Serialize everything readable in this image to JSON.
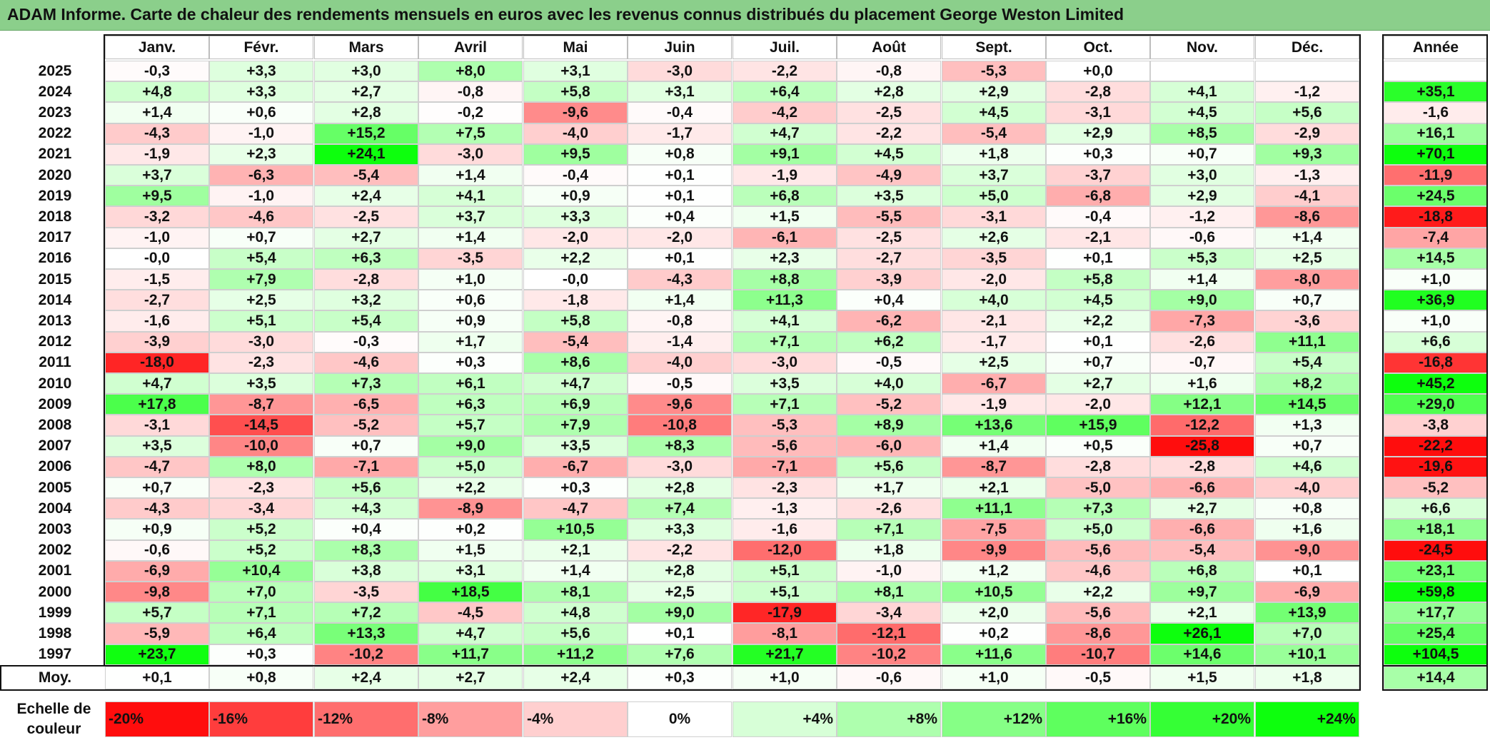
{
  "title": "ADAM Informe. Carte de chaleur des rendements mensuels en euros avec les revenus connus distribués du placement George Weston Limited",
  "months": [
    "Janv.",
    "Févr.",
    "Mars",
    "Avril",
    "Mai",
    "Juin",
    "Juil.",
    "Août",
    "Sept.",
    "Oct.",
    "Nov.",
    "Déc."
  ],
  "year_header": "Année",
  "avg_label": "Moy.",
  "scale_label": "Echelle de couleur",
  "scale_labels": [
    "-20%",
    "-16%",
    "-12%",
    "-8%",
    "-4%",
    "0%",
    "+4%",
    "+8%",
    "+12%",
    "+16%",
    "+20%",
    "+24%"
  ],
  "scale_values": [
    -20,
    -16,
    -12,
    -8,
    -4,
    0,
    4,
    8,
    12,
    16,
    20,
    24
  ],
  "colors": {
    "negative": "#ff0000",
    "positive": "#00ff00",
    "neutral": "#ffffff",
    "title_bg": "#8bcf8b"
  },
  "chart_data": {
    "type": "heatmap",
    "title": "ADAM Informe. Carte de chaleur des rendements mensuels en euros avec les revenus connus distribués du placement George Weston Limited",
    "categories": [
      "Janv.",
      "Févr.",
      "Mars",
      "Avril",
      "Mai",
      "Juin",
      "Juil.",
      "Août",
      "Sept.",
      "Oct.",
      "Nov.",
      "Déc."
    ],
    "rows": [
      {
        "year": "2025",
        "values": [
          "-0,3",
          "+3,3",
          "+3,0",
          "+8,0",
          "+3,1",
          "-3,0",
          "-2,2",
          "-0,8",
          "-5,3",
          "+0,0",
          "",
          ""
        ],
        "annual": ""
      },
      {
        "year": "2024",
        "values": [
          "+4,8",
          "+3,3",
          "+2,7",
          "-0,8",
          "+5,8",
          "+3,1",
          "+6,4",
          "+2,8",
          "+2,9",
          "-2,8",
          "+4,1",
          "-1,2"
        ],
        "annual": "+35,1"
      },
      {
        "year": "2023",
        "values": [
          "+1,4",
          "+0,6",
          "+2,8",
          "-0,2",
          "-9,6",
          "-0,4",
          "-4,2",
          "-2,5",
          "+4,5",
          "-3,1",
          "+4,5",
          "+5,6"
        ],
        "annual": "-1,6"
      },
      {
        "year": "2022",
        "values": [
          "-4,3",
          "-1,0",
          "+15,2",
          "+7,5",
          "-4,0",
          "-1,7",
          "+4,7",
          "-2,2",
          "-5,4",
          "+2,9",
          "+8,5",
          "-2,9"
        ],
        "annual": "+16,1"
      },
      {
        "year": "2021",
        "values": [
          "-1,9",
          "+2,3",
          "+24,1",
          "-3,0",
          "+9,5",
          "+0,8",
          "+9,1",
          "+4,5",
          "+1,8",
          "+0,3",
          "+0,7",
          "+9,3"
        ],
        "annual": "+70,1"
      },
      {
        "year": "2020",
        "values": [
          "+3,7",
          "-6,3",
          "-5,4",
          "+1,4",
          "-0,4",
          "+0,1",
          "-1,9",
          "-4,9",
          "+3,7",
          "-3,7",
          "+3,0",
          "-1,3"
        ],
        "annual": "-11,9"
      },
      {
        "year": "2019",
        "values": [
          "+9,5",
          "-1,0",
          "+2,4",
          "+4,1",
          "+0,9",
          "+0,1",
          "+6,8",
          "+3,5",
          "+5,0",
          "-6,8",
          "+2,9",
          "-4,1"
        ],
        "annual": "+24,5"
      },
      {
        "year": "2018",
        "values": [
          "-3,2",
          "-4,6",
          "-2,5",
          "+3,7",
          "+3,3",
          "+0,4",
          "+1,5",
          "-5,5",
          "-3,1",
          "-0,4",
          "-1,2",
          "-8,6"
        ],
        "annual": "-18,8"
      },
      {
        "year": "2017",
        "values": [
          "-1,0",
          "+0,7",
          "+2,7",
          "+1,4",
          "-2,0",
          "-2,0",
          "-6,1",
          "-2,5",
          "+2,6",
          "-2,1",
          "-0,6",
          "+1,4"
        ],
        "annual": "-7,4"
      },
      {
        "year": "2016",
        "values": [
          "-0,0",
          "+5,4",
          "+6,3",
          "-3,5",
          "+2,2",
          "+0,1",
          "+2,3",
          "-2,7",
          "-3,5",
          "+0,1",
          "+5,3",
          "+2,5"
        ],
        "annual": "+14,5"
      },
      {
        "year": "2015",
        "values": [
          "-1,5",
          "+7,9",
          "-2,8",
          "+1,0",
          "-0,0",
          "-4,3",
          "+8,8",
          "-3,9",
          "-2,0",
          "+5,8",
          "+1,4",
          "-8,0"
        ],
        "annual": "+1,0"
      },
      {
        "year": "2014",
        "values": [
          "-2,7",
          "+2,5",
          "+3,2",
          "+0,6",
          "-1,8",
          "+1,4",
          "+11,3",
          "+0,4",
          "+4,0",
          "+4,5",
          "+9,0",
          "+0,7"
        ],
        "annual": "+36,9"
      },
      {
        "year": "2013",
        "values": [
          "-1,6",
          "+5,1",
          "+5,4",
          "+0,9",
          "+5,8",
          "-0,8",
          "+4,1",
          "-6,2",
          "-2,1",
          "+2,2",
          "-7,3",
          "-3,6"
        ],
        "annual": "+1,0"
      },
      {
        "year": "2012",
        "values": [
          "-3,9",
          "-3,0",
          "-0,3",
          "+1,7",
          "-5,4",
          "-1,4",
          "+7,1",
          "+6,2",
          "-1,7",
          "+0,1",
          "-2,6",
          "+11,1"
        ],
        "annual": "+6,6"
      },
      {
        "year": "2011",
        "values": [
          "-18,0",
          "-2,3",
          "-4,6",
          "+0,3",
          "+8,6",
          "-4,0",
          "-3,0",
          "-0,5",
          "+2,5",
          "+0,7",
          "-0,7",
          "+5,4"
        ],
        "annual": "-16,8"
      },
      {
        "year": "2010",
        "values": [
          "+4,7",
          "+3,5",
          "+7,3",
          "+6,1",
          "+4,7",
          "-0,5",
          "+3,5",
          "+4,0",
          "-6,7",
          "+2,7",
          "+1,6",
          "+8,2"
        ],
        "annual": "+45,2"
      },
      {
        "year": "2009",
        "values": [
          "+17,8",
          "-8,7",
          "-6,5",
          "+6,3",
          "+6,9",
          "-9,6",
          "+7,1",
          "-5,2",
          "-1,9",
          "-2,0",
          "+12,1",
          "+14,5"
        ],
        "annual": "+29,0"
      },
      {
        "year": "2008",
        "values": [
          "-3,1",
          "-14,5",
          "-5,2",
          "+5,7",
          "+7,9",
          "-10,8",
          "-5,3",
          "+8,9",
          "+13,6",
          "+15,9",
          "-12,2",
          "+1,3"
        ],
        "annual": "-3,8"
      },
      {
        "year": "2007",
        "values": [
          "+3,5",
          "-10,0",
          "+0,7",
          "+9,0",
          "+3,5",
          "+8,3",
          "-5,6",
          "-6,0",
          "+1,4",
          "+0,5",
          "-25,8",
          "+0,7"
        ],
        "annual": "-22,2"
      },
      {
        "year": "2006",
        "values": [
          "-4,7",
          "+8,0",
          "-7,1",
          "+5,0",
          "-6,7",
          "-3,0",
          "-7,1",
          "+5,6",
          "-8,7",
          "-2,8",
          "-2,8",
          "+4,6"
        ],
        "annual": "-19,6"
      },
      {
        "year": "2005",
        "values": [
          "+0,7",
          "-2,3",
          "+5,6",
          "+2,2",
          "+0,3",
          "+2,8",
          "-2,3",
          "+1,7",
          "+2,1",
          "-5,0",
          "-6,6",
          "-4,0"
        ],
        "annual": "-5,2"
      },
      {
        "year": "2004",
        "values": [
          "-4,3",
          "-3,4",
          "+4,3",
          "-8,9",
          "-4,7",
          "+7,4",
          "-1,3",
          "-2,6",
          "+11,1",
          "+7,3",
          "+2,7",
          "+0,8"
        ],
        "annual": "+6,6"
      },
      {
        "year": "2003",
        "values": [
          "+0,9",
          "+5,2",
          "+0,4",
          "+0,2",
          "+10,5",
          "+3,3",
          "-1,6",
          "+7,1",
          "-7,5",
          "+5,0",
          "-6,6",
          "+1,6"
        ],
        "annual": "+18,1"
      },
      {
        "year": "2002",
        "values": [
          "-0,6",
          "+5,2",
          "+8,3",
          "+1,5",
          "+2,1",
          "-2,2",
          "-12,0",
          "+1,8",
          "-9,9",
          "-5,6",
          "-5,4",
          "-9,0"
        ],
        "annual": "-24,5"
      },
      {
        "year": "2001",
        "values": [
          "-6,9",
          "+10,4",
          "+3,8",
          "+3,1",
          "+1,4",
          "+2,8",
          "+5,1",
          "-1,0",
          "+1,2",
          "-4,6",
          "+6,8",
          "+0,1"
        ],
        "annual": "+23,1"
      },
      {
        "year": "2000",
        "values": [
          "-9,8",
          "+7,0",
          "-3,5",
          "+18,5",
          "+8,1",
          "+2,5",
          "+5,1",
          "+8,1",
          "+10,5",
          "+2,2",
          "+9,7",
          "-6,9"
        ],
        "annual": "+59,8"
      },
      {
        "year": "1999",
        "values": [
          "+5,7",
          "+7,1",
          "+7,2",
          "-4,5",
          "+4,8",
          "+9,0",
          "-17,9",
          "-3,4",
          "+2,0",
          "-5,6",
          "+2,1",
          "+13,9"
        ],
        "annual": "+17,7"
      },
      {
        "year": "1998",
        "values": [
          "-5,9",
          "+6,4",
          "+13,3",
          "+4,7",
          "+5,6",
          "+0,1",
          "-8,1",
          "-12,1",
          "+0,2",
          "-8,6",
          "+26,1",
          "+7,0"
        ],
        "annual": "+25,4"
      },
      {
        "year": "1997",
        "values": [
          "+23,7",
          "+0,3",
          "-10,2",
          "+11,7",
          "+11,2",
          "+7,6",
          "+21,7",
          "-10,2",
          "+11,6",
          "-10,7",
          "+14,6",
          "+10,1"
        ],
        "annual": "+104,5"
      }
    ],
    "averages": [
      "+0,1",
      "+0,8",
      "+2,4",
      "+2,7",
      "+2,4",
      "+0,3",
      "+1,0",
      "-0,6",
      "+1,0",
      "-0,5",
      "+1,5",
      "+1,8"
    ],
    "average_annual": "+14,4"
  }
}
